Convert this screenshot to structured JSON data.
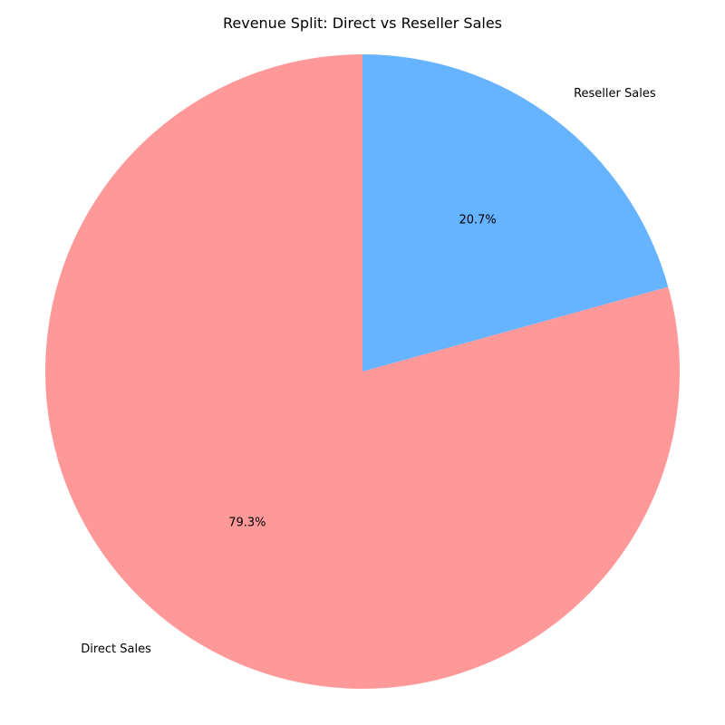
{
  "chart_data": {
    "type": "pie",
    "title": "Revenue Split: Direct vs Reseller Sales",
    "slices": [
      {
        "label": "Reseller Sales",
        "value": 20.7,
        "pct_label": "20.7%",
        "color": "#66b3ff"
      },
      {
        "label": "Direct Sales",
        "value": 79.3,
        "pct_label": "79.3%",
        "color": "#ff9999"
      }
    ],
    "start_angle_deg": 90,
    "direction": "clockwise",
    "legend": "none"
  }
}
